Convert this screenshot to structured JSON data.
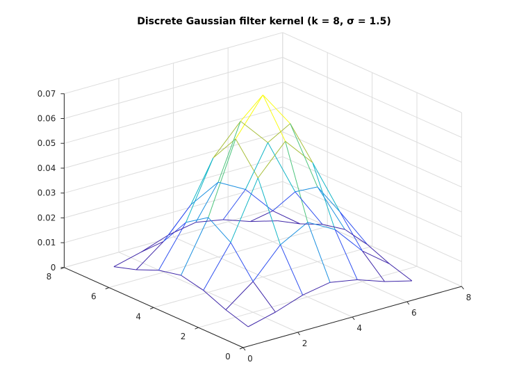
{
  "chart_data": {
    "type": "surface",
    "title": "Discrete Gaussian filter kernel (k = 8, σ = 1.5)",
    "xlabel": "",
    "ylabel": "",
    "zlabel": "",
    "x": [
      1,
      2,
      3,
      4,
      5,
      6,
      7
    ],
    "y": [
      1,
      2,
      3,
      4,
      5,
      6,
      7
    ],
    "z": [
      [
        0.0013,
        0.0041,
        0.0079,
        0.0099,
        0.0079,
        0.0041,
        0.0013
      ],
      [
        0.0041,
        0.0124,
        0.0241,
        0.0301,
        0.0241,
        0.0124,
        0.0041
      ],
      [
        0.0079,
        0.0241,
        0.047,
        0.0587,
        0.047,
        0.0241,
        0.0079
      ],
      [
        0.0099,
        0.0301,
        0.0587,
        0.0733,
        0.0587,
        0.0301,
        0.0099
      ],
      [
        0.0079,
        0.0241,
        0.047,
        0.0587,
        0.047,
        0.0241,
        0.0079
      ],
      [
        0.0041,
        0.0124,
        0.0241,
        0.0301,
        0.0241,
        0.0124,
        0.0041
      ],
      [
        0.0013,
        0.0041,
        0.0079,
        0.0099,
        0.0079,
        0.0041,
        0.0013
      ]
    ],
    "xlim": [
      0,
      8
    ],
    "ylim": [
      0,
      8
    ],
    "zlim": [
      0,
      0.07
    ],
    "xticks": [
      "0",
      "2",
      "4",
      "6",
      "8"
    ],
    "yticks": [
      "0",
      "2",
      "4",
      "6",
      "8"
    ],
    "zticks": [
      "0",
      "0.01",
      "0.02",
      "0.03",
      "0.04",
      "0.05",
      "0.06",
      "0.07"
    ],
    "grid": true,
    "colormap": [
      "#3e26a8",
      "#2e4ff0",
      "#1a8fe0",
      "#12b5c6",
      "#4bc47c",
      "#a8bf3a",
      "#f2c930",
      "#f9fb0e"
    ]
  }
}
